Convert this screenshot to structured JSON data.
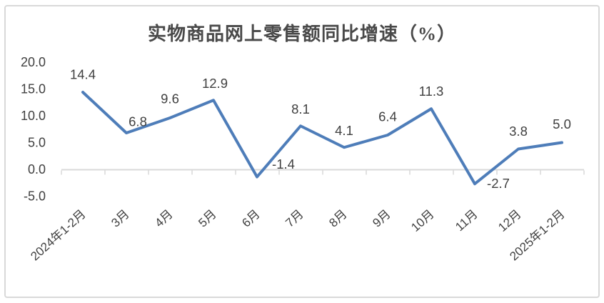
{
  "chart_data": {
    "type": "line",
    "title": "实物商品网上零售额同比增速（%）",
    "categories": [
      "2024年1-2月",
      "3月",
      "4月",
      "5月",
      "6月",
      "7月",
      "8月",
      "9月",
      "10月",
      "11月",
      "12月",
      "2025年1-2月"
    ],
    "series": [
      {
        "name": "实物商品网上零售额同比增速",
        "values": [
          14.4,
          6.8,
          9.6,
          12.9,
          -1.4,
          8.1,
          4.1,
          6.4,
          11.3,
          -2.7,
          3.8,
          5.0
        ],
        "data_labels": [
          "14.4",
          "6.8",
          "9.6",
          "12.9",
          "-1.4",
          "8.1",
          "4.1",
          "6.4",
          "11.3",
          "-2.7",
          "3.8",
          "5.0"
        ]
      }
    ],
    "xlabel": "",
    "ylabel": "",
    "ylim": [
      -5.0,
      20.0
    ],
    "y_ticks": [
      20.0,
      15.0,
      10.0,
      5.0,
      0.0,
      -5.0
    ],
    "y_tick_labels": [
      "20.0",
      "15.0",
      "10.0",
      "5.0",
      "0.0",
      "-5.0"
    ],
    "grid": false,
    "legend_position": "none",
    "colors": {
      "series_line": "#4E7DB9",
      "axis_line": "#D9D9D9",
      "tick_mark": "#D9D9D9",
      "frame_border": "#D9D9D9",
      "title_text": "#494949",
      "label_text": "#404040",
      "background": "#FFFFFF"
    }
  }
}
